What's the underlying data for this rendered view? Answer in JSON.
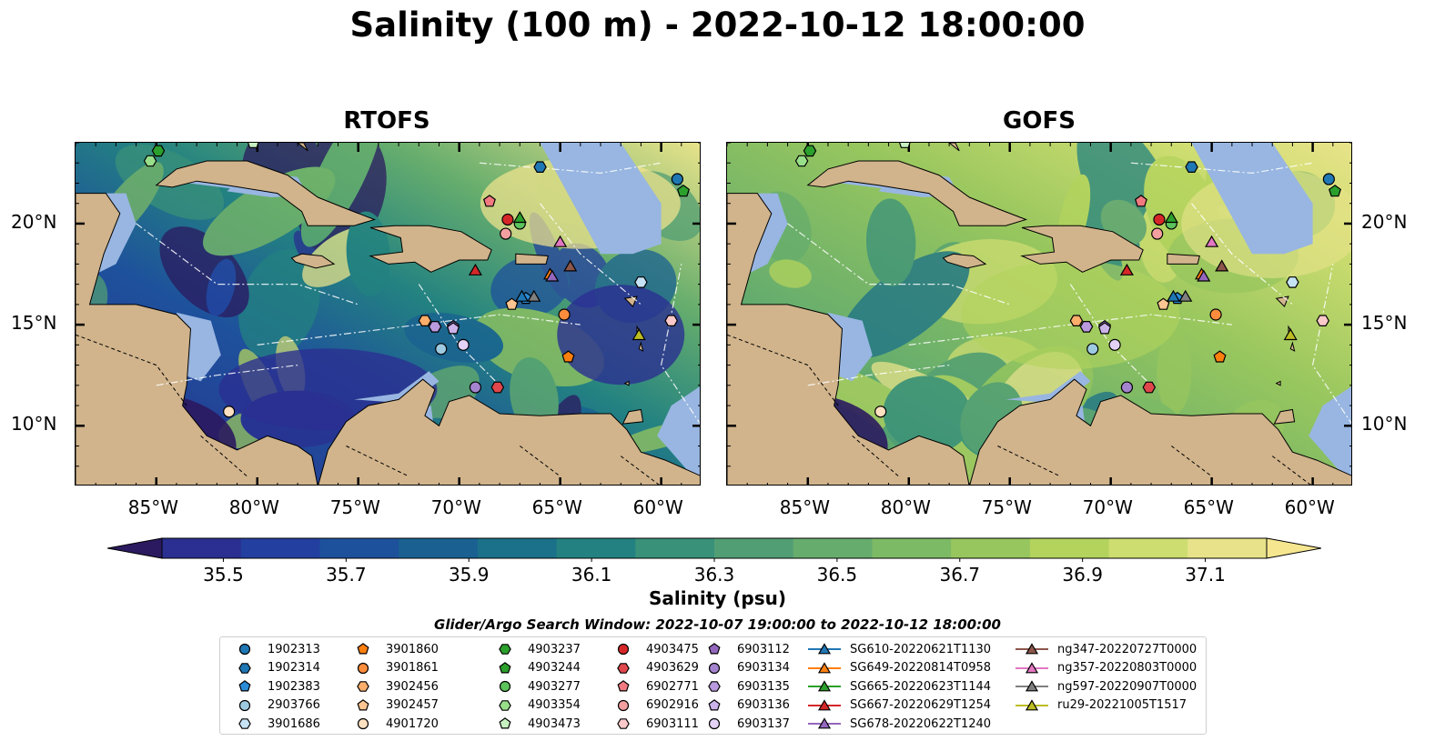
{
  "title": "Salinity (100 m) - 2022-10-12 18:00:00",
  "panels": [
    {
      "name": "RTOFS"
    },
    {
      "name": "GOFS"
    }
  ],
  "axes": {
    "lon_ticks": [
      "85°W",
      "80°W",
      "75°W",
      "70°W",
      "65°W",
      "60°W"
    ],
    "lat_ticks": [
      "20°N",
      "15°N",
      "10°N"
    ],
    "lon_values": [
      -85,
      -80,
      -75,
      -70,
      -65,
      -60
    ],
    "lat_values": [
      20,
      15,
      10
    ],
    "lon_range": [
      -89,
      -58
    ],
    "lat_range": [
      7,
      24
    ]
  },
  "colorbar": {
    "label": "Salinity (psu)",
    "ticks": [
      "35.5",
      "35.7",
      "35.9",
      "36.1",
      "36.3",
      "36.5",
      "36.7",
      "36.9",
      "37.1"
    ],
    "range": [
      35.4,
      37.2
    ],
    "colors": [
      "#2b1a5f",
      "#2a2f91",
      "#233f9f",
      "#1e519c",
      "#1a6192",
      "#1b7189",
      "#238281",
      "#3a917a",
      "#529e74",
      "#66ad6d",
      "#7dba66",
      "#97c65e",
      "#b3d35d",
      "#cedd70",
      "#e8e38a",
      "#f5e68f"
    ]
  },
  "colors": {
    "land": "#d1b48c",
    "shelf": "#98b6e1",
    "frame": "#000000"
  },
  "legend": {
    "title": "Glider/Argo Search Window: 2022-10-07 19:00:00 to 2022-10-12 18:00:00",
    "columns": [
      [
        {
          "label": "1902313",
          "marker": "circle",
          "color": "#1f77b4"
        },
        {
          "label": "1902314",
          "marker": "hexagon",
          "color": "#1f77b4"
        },
        {
          "label": "1902383",
          "marker": "pentagon",
          "color": "#2b8cd6"
        },
        {
          "label": "2903766",
          "marker": "circle",
          "color": "#9ecae1"
        },
        {
          "label": "3901686",
          "marker": "hexagon",
          "color": "#c6e3f5"
        }
      ],
      [
        {
          "label": "3901860",
          "marker": "pentagon",
          "color": "#ff7f0e"
        },
        {
          "label": "3901861",
          "marker": "circle",
          "color": "#fd8d3c"
        },
        {
          "label": "3902456",
          "marker": "hexagon",
          "color": "#fdae6b"
        },
        {
          "label": "3902457",
          "marker": "pentagon",
          "color": "#fdc591"
        },
        {
          "label": "4901720",
          "marker": "circle",
          "color": "#fde0c0"
        }
      ],
      [
        {
          "label": "4903237",
          "marker": "hexagon",
          "color": "#2ca02c"
        },
        {
          "label": "4903244",
          "marker": "pentagon",
          "color": "#2ca02c"
        },
        {
          "label": "4903277",
          "marker": "circle",
          "color": "#5cc35c"
        },
        {
          "label": "4903354",
          "marker": "hexagon",
          "color": "#98df8a"
        },
        {
          "label": "4903473",
          "marker": "pentagon",
          "color": "#c7f0c0"
        }
      ],
      [
        {
          "label": "4903475",
          "marker": "circle",
          "color": "#d62728"
        },
        {
          "label": "4903629",
          "marker": "hexagon",
          "color": "#e0474c"
        },
        {
          "label": "6902771",
          "marker": "pentagon",
          "color": "#f07a80"
        },
        {
          "label": "6902916",
          "marker": "circle",
          "color": "#f4a0a0"
        },
        {
          "label": "6903111",
          "marker": "hexagon",
          "color": "#fbc9c9"
        }
      ],
      [
        {
          "label": "6903112",
          "marker": "pentagon",
          "color": "#9467bd"
        },
        {
          "label": "6903134",
          "marker": "circle",
          "color": "#a584cf"
        },
        {
          "label": "6903135",
          "marker": "hexagon",
          "color": "#b99ade"
        },
        {
          "label": "6903136",
          "marker": "pentagon",
          "color": "#cbb3ea"
        },
        {
          "label": "6903137",
          "marker": "circle",
          "color": "#e3d2f6"
        }
      ],
      [
        {
          "label": "SG610-20220621T1130",
          "marker": "triangle",
          "color": "#1f77b4",
          "line": true
        },
        {
          "label": "SG649-20220814T0958",
          "marker": "triangle",
          "color": "#ff7f0e",
          "line": true
        },
        {
          "label": "SG665-20220623T1144",
          "marker": "triangle",
          "color": "#2ca02c",
          "line": true
        },
        {
          "label": "SG667-20220629T1254",
          "marker": "triangle",
          "color": "#d62728",
          "line": true
        },
        {
          "label": "SG678-20220622T1240",
          "marker": "triangle",
          "color": "#9467bd",
          "line": true
        }
      ],
      [
        {
          "label": "ng347-20220727T0000",
          "marker": "triangle",
          "color": "#8c564b",
          "line": true
        },
        {
          "label": "ng357-20220803T0000",
          "marker": "triangle",
          "color": "#e377c2",
          "line": true
        },
        {
          "label": "ng597-20220907T0000",
          "marker": "triangle",
          "color": "#7f7f7f",
          "line": true
        },
        {
          "label": "ru29-20221005T1517",
          "marker": "triangle",
          "color": "#bcbd22",
          "line": true
        }
      ]
    ]
  },
  "observations": [
    {
      "label": "1902313",
      "lon": -59.2,
      "lat": 22.2
    },
    {
      "label": "1902314",
      "lon": -66.0,
      "lat": 22.8
    },
    {
      "label": "1902383",
      "lon": -66.7,
      "lat": 16.3
    },
    {
      "label": "2903766",
      "lon": -70.9,
      "lat": 13.8
    },
    {
      "label": "3901686",
      "lon": -61.0,
      "lat": 17.1
    },
    {
      "label": "3901860",
      "lon": -64.6,
      "lat": 13.4
    },
    {
      "label": "3901861",
      "lon": -64.8,
      "lat": 15.5
    },
    {
      "label": "3902456",
      "lon": -71.7,
      "lat": 15.2
    },
    {
      "label": "3902457",
      "lon": -67.4,
      "lat": 16.0
    },
    {
      "label": "4901720",
      "lon": -81.4,
      "lat": 10.7
    },
    {
      "label": "4903237",
      "lon": -84.9,
      "lat": 23.6
    },
    {
      "label": "4903244",
      "lon": -58.9,
      "lat": 21.6
    },
    {
      "label": "4903277",
      "lon": -67.0,
      "lat": 20.0
    },
    {
      "label": "4903354",
      "lon": -85.3,
      "lat": 23.1
    },
    {
      "label": "4903473",
      "lon": -80.2,
      "lat": 24.0
    },
    {
      "label": "4903475",
      "lon": -67.6,
      "lat": 20.2
    },
    {
      "label": "4903629",
      "lon": -68.1,
      "lat": 11.9
    },
    {
      "label": "6902771",
      "lon": -68.5,
      "lat": 21.1
    },
    {
      "label": "6902916",
      "lon": -67.7,
      "lat": 19.5
    },
    {
      "label": "6903111",
      "lon": -59.5,
      "lat": 15.2
    },
    {
      "label": "6903112",
      "lon": -70.3,
      "lat": 14.9
    },
    {
      "label": "6903134",
      "lon": -69.2,
      "lat": 11.9
    },
    {
      "label": "6903135",
      "lon": -71.2,
      "lat": 14.9
    },
    {
      "label": "6903136",
      "lon": -70.3,
      "lat": 14.8
    },
    {
      "label": "6903137",
      "lon": -69.8,
      "lat": 14.0
    },
    {
      "label": "SG610-20220621T1130",
      "lon": -66.9,
      "lat": 16.4
    },
    {
      "label": "SG649-20220814T0958",
      "lon": -65.5,
      "lat": 17.5
    },
    {
      "label": "SG665-20220623T1144",
      "lon": -67.0,
      "lat": 20.3
    },
    {
      "label": "SG667-20220629T1254",
      "lon": -69.2,
      "lat": 17.7
    },
    {
      "label": "SG678-20220622T1240",
      "lon": -65.4,
      "lat": 17.4
    },
    {
      "label": "ng347-20220727T0000",
      "lon": -64.5,
      "lat": 17.9
    },
    {
      "label": "ng357-20220803T0000",
      "lon": -65.0,
      "lat": 19.1
    },
    {
      "label": "ng597-20220907T0000",
      "lon": -66.3,
      "lat": 16.4
    },
    {
      "label": "ru29-20221005T1517",
      "lon": -61.1,
      "lat": 14.5
    }
  ]
}
